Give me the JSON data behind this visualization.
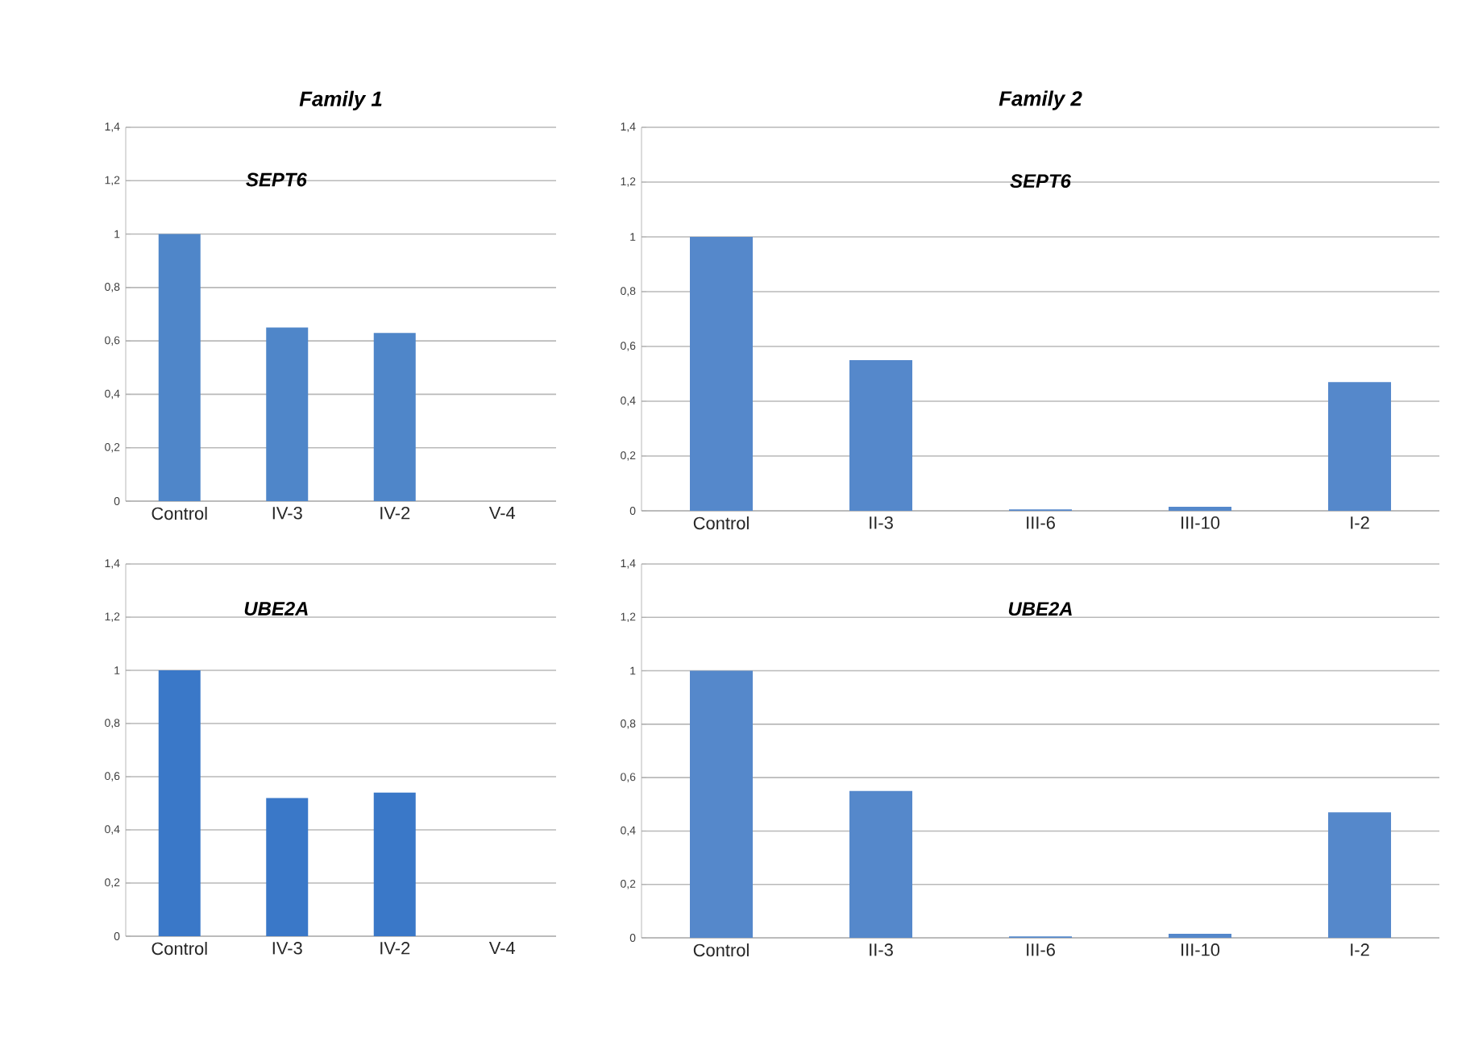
{
  "chart_data": [
    {
      "type": "bar",
      "title": "Family 1",
      "subtitle": "SEPT6",
      "categories": [
        "Control",
        "IV-3",
        "IV-2",
        "V-4"
      ],
      "values": [
        1,
        0.65,
        0.63,
        0
      ],
      "color": "#4f86c9",
      "ylim": [
        0,
        1.4
      ],
      "yticks": [
        0,
        {
          "value": 0.2,
          "label": "0,2"
        },
        {
          "value": 0.4,
          "label": "0,4"
        },
        {
          "value": 0.6,
          "label": "0,6"
        },
        {
          "value": 0.8,
          "label": "0,8"
        },
        1,
        {
          "value": 1.2,
          "label": "1,2"
        },
        {
          "value": 1.4,
          "label": "1,4"
        }
      ],
      "grid": "y"
    },
    {
      "type": "bar",
      "title": "Family 2",
      "subtitle": "SEPT6",
      "categories": [
        "Control",
        "II-3",
        "III-6",
        "III-10",
        "I-2"
      ],
      "values": [
        1,
        0.55,
        0.005,
        0.015,
        0.47
      ],
      "color": "#5588cb",
      "ylim": [
        0,
        1.4
      ],
      "yticks": [
        0,
        {
          "value": 0.2,
          "label": "0,2"
        },
        {
          "value": 0.4,
          "label": "0,4"
        },
        {
          "value": 0.6,
          "label": "0,6"
        },
        {
          "value": 0.8,
          "label": "0,8"
        },
        1,
        {
          "value": 1.2,
          "label": "1,2"
        },
        {
          "value": 1.4,
          "label": "1,4"
        }
      ],
      "grid": "y"
    },
    {
      "type": "bar",
      "title": "UBE2A",
      "categories": [
        "Control",
        "IV-3",
        "IV-2",
        "V-4"
      ],
      "values": [
        1,
        0.52,
        0.54,
        0
      ],
      "color": "#3a78c8",
      "ylim": [
        0,
        1.4
      ],
      "yticks": [
        0,
        {
          "value": 0.2,
          "label": "0,2"
        },
        {
          "value": 0.4,
          "label": "0,4"
        },
        {
          "value": 0.6,
          "label": "0,6"
        },
        {
          "value": 0.8,
          "label": "0,8"
        },
        1,
        {
          "value": 1.2,
          "label": "1,2"
        },
        {
          "value": 1.4,
          "label": "1,4"
        }
      ],
      "grid": "y"
    },
    {
      "type": "bar",
      "title": "UBE2A",
      "categories": [
        "Control",
        "II-3",
        "III-6",
        "III-10",
        "I-2"
      ],
      "values": [
        1,
        0.55,
        0.005,
        0.015,
        0.47
      ],
      "color": "#5588cb",
      "ylim": [
        0,
        1.4
      ],
      "yticks": [
        0,
        {
          "value": 0.2,
          "label": "0,2"
        },
        {
          "value": 0.4,
          "label": "0,4"
        },
        {
          "value": 0.6,
          "label": "0,6"
        },
        {
          "value": 0.8,
          "label": "0,8"
        },
        1,
        {
          "value": 1.2,
          "label": "1,2"
        },
        {
          "value": 1.4,
          "label": "1,4"
        }
      ],
      "grid": "y"
    }
  ]
}
